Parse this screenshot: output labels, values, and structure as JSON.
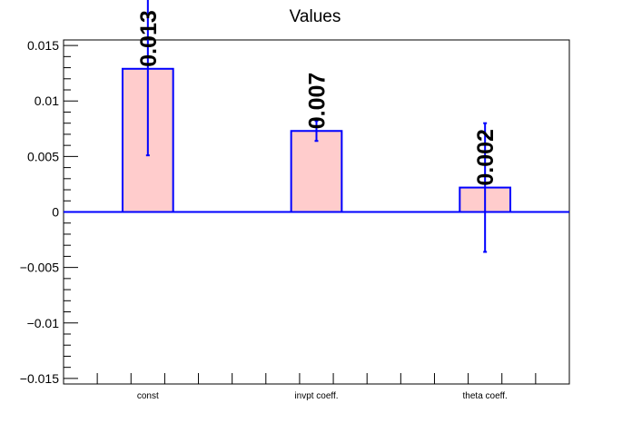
{
  "chart_data": {
    "type": "bar",
    "title": "Values",
    "xlabel": "",
    "ylabel": "",
    "categories": [
      "const",
      "invpt coeff.",
      "theta coeff."
    ],
    "values": [
      0.0129,
      0.0073,
      0.0022
    ],
    "errors": [
      0.0078,
      0.0009,
      0.0058
    ],
    "value_labels": [
      "0.013",
      "0.007",
      "0.002"
    ],
    "ylim": [
      -0.0155,
      0.0155
    ],
    "yticks": [
      -0.015,
      -0.01,
      -0.005,
      0,
      0.005,
      0.01,
      0.015
    ],
    "ytick_labels": [
      "−0.015",
      "−0.01",
      "−0.005",
      "0",
      "0.005",
      "0.01",
      "0.015"
    ],
    "grid": false,
    "legend": "none",
    "colors": {
      "bar_fill": "#ffcccc",
      "bar_edge": "#0000ff",
      "axis": "#000000"
    }
  }
}
